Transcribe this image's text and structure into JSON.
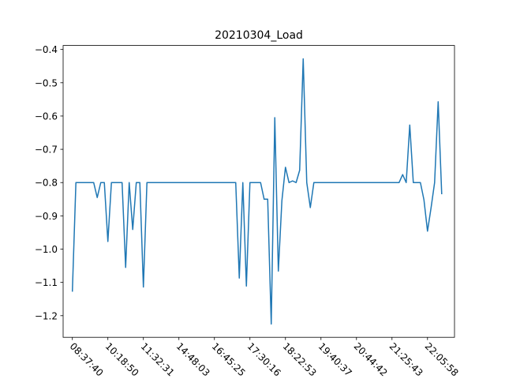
{
  "chart_data": {
    "type": "line",
    "title": "20210304_Load",
    "xlabel": "",
    "ylabel": "",
    "ylim": [
      -1.265,
      -0.388
    ],
    "yticks": [
      -1.2,
      -1.1,
      -1.0,
      -0.9,
      -0.8,
      -0.7,
      -0.6,
      -0.5,
      -0.4
    ],
    "ytick_labels": [
      "−1.2",
      "−1.1",
      "−1.0",
      "−0.9",
      "−0.8",
      "−0.7",
      "−0.6",
      "−0.5",
      "−0.4"
    ],
    "xlim": [
      -2.6,
      107.6
    ],
    "xticks": [
      0,
      10,
      20,
      30,
      40,
      50,
      60,
      70,
      80,
      90,
      100
    ],
    "xtick_labels": [
      "08:37:40",
      "10:18:50",
      "11:32:31",
      "14:48:03",
      "16:45:25",
      "17:30:16",
      "18:22:53",
      "19:40:37",
      "20:44:42",
      "21:25:43",
      "22:05:58"
    ],
    "grid": false,
    "legend": "none",
    "series": [
      {
        "color": "#1f77b4",
        "x": [
          0,
          1,
          2,
          3,
          4,
          5,
          6,
          7,
          8,
          9,
          10,
          11,
          12,
          13,
          14,
          15,
          16,
          17,
          18,
          19,
          20,
          21,
          22,
          23,
          24,
          25,
          26,
          27,
          28,
          29,
          30,
          31,
          32,
          33,
          34,
          35,
          36,
          37,
          38,
          39,
          40,
          41,
          42,
          43,
          44,
          45,
          46,
          47,
          48,
          49,
          50,
          51,
          52,
          53,
          54,
          55,
          56,
          57,
          58,
          59,
          60,
          61,
          62,
          63,
          64,
          65,
          66,
          67,
          68,
          69,
          70,
          71,
          72,
          73,
          74,
          75,
          76,
          77,
          78,
          79,
          80,
          81,
          82,
          83,
          84,
          85,
          86,
          87,
          88,
          89,
          90,
          91,
          92,
          93,
          94,
          95,
          96,
          97,
          98,
          99,
          100,
          101,
          102
        ],
        "values": [
          -1.128,
          -0.8,
          -0.8,
          -0.8,
          -0.8,
          -0.8,
          -0.8,
          -0.845,
          -0.8,
          -0.8,
          -0.977,
          -0.8,
          -0.8,
          -0.8,
          -0.8,
          -1.055,
          -0.8,
          -0.941,
          -0.8,
          -0.8,
          -1.114,
          -0.8,
          -0.8,
          -0.8,
          -0.8,
          -0.8,
          -0.8,
          -0.8,
          -0.8,
          -0.8,
          -0.8,
          -0.8,
          -0.8,
          -0.8,
          -0.8,
          -0.8,
          -0.8,
          -0.8,
          -0.8,
          -0.8,
          -0.8,
          -0.8,
          -0.8,
          -0.8,
          -0.8,
          -0.8,
          -0.8,
          -1.087,
          -0.8,
          -1.111,
          -0.8,
          -0.8,
          -0.8,
          -0.8,
          -0.85,
          -0.85,
          -1.225,
          -0.605,
          -1.066,
          -0.854,
          -0.754,
          -0.8,
          -0.795,
          -0.8,
          -0.763,
          -0.428,
          -0.8,
          -0.875,
          -0.8,
          -0.8,
          -0.8,
          -0.8,
          -0.8,
          -0.8,
          -0.8,
          -0.8,
          -0.8,
          -0.8,
          -0.8,
          -0.8,
          -0.8,
          -0.8,
          -0.8,
          -0.8,
          -0.8,
          -0.8,
          -0.8,
          -0.8,
          -0.8,
          -0.8,
          -0.8,
          -0.8,
          -0.8,
          -0.776,
          -0.8,
          -0.627,
          -0.8,
          -0.8,
          -0.8,
          -0.852,
          -0.946,
          -0.876,
          -0.8
        ]
      }
    ],
    "tail": {
      "x": [
        102,
        103,
        104
      ],
      "values": [
        -0.8,
        -0.557,
        -0.835
      ]
    }
  }
}
